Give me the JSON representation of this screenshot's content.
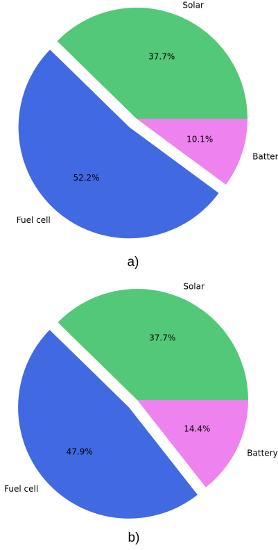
{
  "chart_data": [
    {
      "type": "pie",
      "caption": "a)",
      "categories": [
        "Solar",
        "Fuel cell",
        "Battery"
      ],
      "values": [
        37.7,
        52.2,
        10.1
      ],
      "value_labels": [
        "37.7%",
        "52.2%",
        "10.1%"
      ],
      "colors": [
        "#53c878",
        "#4169e1",
        "#ee82ee"
      ],
      "exploded": [
        false,
        true,
        false
      ]
    },
    {
      "type": "pie",
      "caption": "b)",
      "categories": [
        "Solar",
        "Fuel cell",
        "Battery"
      ],
      "values": [
        37.7,
        47.9,
        14.4
      ],
      "value_labels": [
        "37.7%",
        "47.9%",
        "14.4%"
      ],
      "colors": [
        "#53c878",
        "#4169e1",
        "#ee82ee"
      ],
      "exploded": [
        false,
        true,
        false
      ]
    }
  ]
}
